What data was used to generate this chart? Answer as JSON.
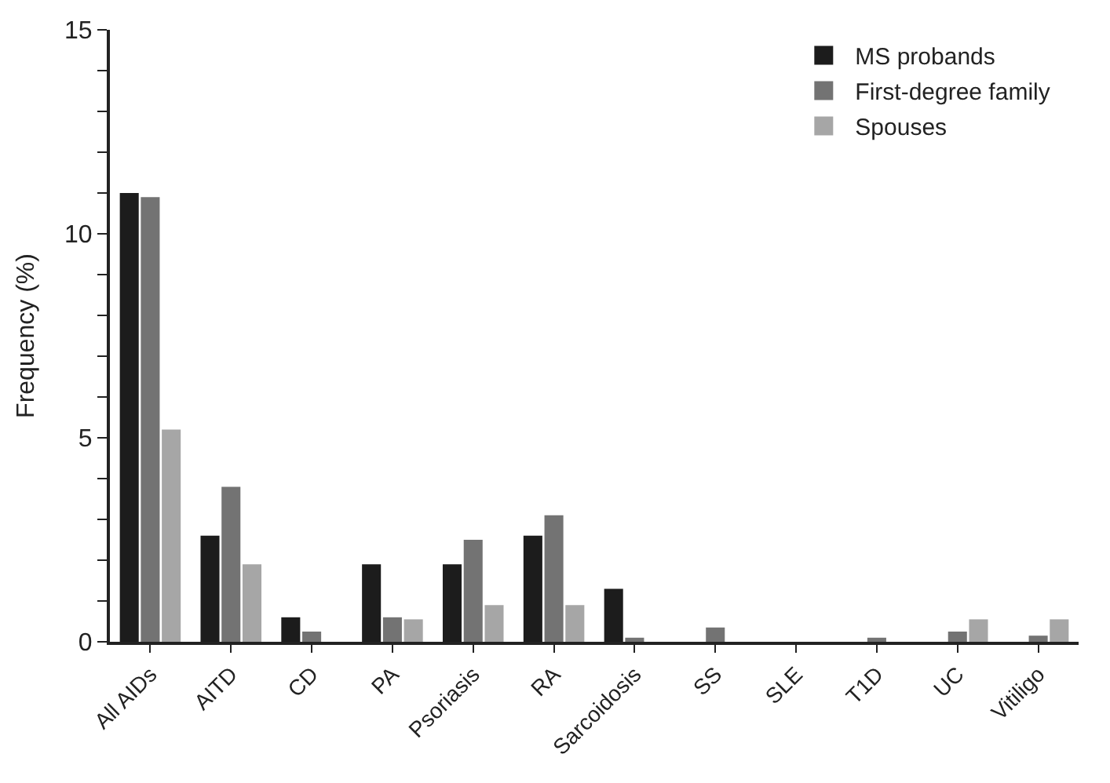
{
  "chart_data": {
    "type": "bar",
    "ylabel": "Frequency (%)",
    "categories": [
      "All AIDs",
      "AITD",
      "CD",
      "PA",
      "Psoriasis",
      "RA",
      "Sarcoidosis",
      "SS",
      "SLE",
      "T1D",
      "UC",
      "Vitiligo"
    ],
    "series": [
      {
        "name": "MS probands",
        "color": "#1c1c1c",
        "values": [
          11.0,
          2.6,
          0.6,
          1.9,
          1.9,
          2.6,
          1.3,
          0,
          0,
          0,
          0,
          0
        ]
      },
      {
        "name": "First-degree family",
        "color": "#737373",
        "values": [
          10.9,
          3.8,
          0.25,
          0.6,
          2.5,
          3.1,
          0.1,
          0.35,
          0,
          0.1,
          0.25,
          0.15
        ]
      },
      {
        "name": "Spouses",
        "color": "#a6a6a6",
        "values": [
          5.2,
          1.9,
          0,
          0.55,
          0.9,
          0.9,
          0,
          0,
          0,
          0,
          0.55,
          0.55
        ]
      }
    ],
    "ylim": [
      0,
      15
    ],
    "yticks": [
      0,
      {
        "value": 1,
        "label": null
      },
      {
        "value": 2,
        "label": null
      },
      {
        "value": 3,
        "label": null
      },
      {
        "value": 4,
        "label": null
      },
      5,
      {
        "value": 6,
        "label": null
      },
      {
        "value": 7,
        "label": null
      },
      {
        "value": 8,
        "label": null
      },
      {
        "value": 9,
        "label": null
      },
      10,
      {
        "value": 11,
        "label": null
      },
      {
        "value": 12,
        "label": null
      },
      {
        "value": 13,
        "label": null
      },
      {
        "value": 14,
        "label": null
      },
      15
    ],
    "legend": "top right"
  }
}
